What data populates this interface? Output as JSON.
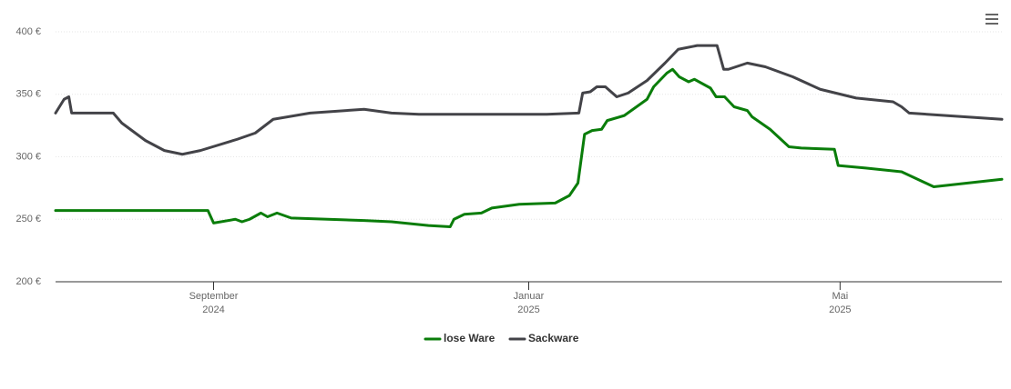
{
  "chart_data": {
    "type": "line",
    "xlim": [
      2024.5,
      2025.5
    ],
    "xticks": [
      {
        "value": 2024.667,
        "label": [
          "September",
          "2024"
        ]
      },
      {
        "value": 2025.0,
        "label": [
          "Januar",
          "2025"
        ]
      },
      {
        "value": 2025.329,
        "label": [
          "Mai",
          "2025"
        ]
      }
    ],
    "ylim": [
      200,
      400
    ],
    "yticks": [
      {
        "value": 200,
        "label": "200 €"
      },
      {
        "value": 250,
        "label": "250 €"
      },
      {
        "value": 300,
        "label": "300 €"
      },
      {
        "value": 350,
        "label": "350 €"
      },
      {
        "value": 400,
        "label": "400 €"
      }
    ],
    "grid": true,
    "legend": "bottom",
    "series": [
      {
        "name": "lose Ware",
        "color": "#0a7d0a",
        "x": [
          2024.5,
          2024.661,
          2024.667,
          2024.69,
          2024.697,
          2024.705,
          2024.717,
          2024.724,
          2024.734,
          2024.749,
          2024.826,
          2024.855,
          2024.894,
          2024.917,
          2024.921,
          2024.932,
          2024.95,
          2024.961,
          2024.99,
          2025.028,
          2025.043,
          2025.052,
          2025.059,
          2025.067,
          2025.077,
          2025.083,
          2025.101,
          2025.125,
          2025.132,
          2025.146,
          2025.152,
          2025.159,
          2025.169,
          2025.175,
          2025.192,
          2025.198,
          2025.207,
          2025.217,
          2025.231,
          2025.236,
          2025.255,
          2025.275,
          2025.288,
          2025.323,
          2025.327,
          2025.356,
          2025.394,
          2025.428,
          2025.5
        ],
        "values": [
          257,
          257,
          247,
          250,
          248,
          250,
          255,
          252,
          255,
          251,
          249,
          248,
          245,
          244,
          250,
          254,
          255,
          259,
          262,
          263,
          269,
          279,
          318,
          321,
          322,
          329,
          333,
          346,
          356,
          367,
          370,
          364,
          360,
          362,
          355,
          348,
          348,
          340,
          337,
          332,
          322,
          308,
          307,
          306,
          293,
          291,
          288,
          276,
          282
        ]
      },
      {
        "name": "Sackware",
        "color": "#434348",
        "x": [
          2024.5,
          2024.509,
          2024.514,
          2024.517,
          2024.561,
          2024.57,
          2024.595,
          2024.615,
          2024.634,
          2024.653,
          2024.692,
          2024.711,
          2024.73,
          2024.769,
          2024.826,
          2024.855,
          2024.884,
          2025.019,
          2025.053,
          2025.057,
          2025.065,
          2025.072,
          2025.081,
          2025.093,
          2025.105,
          2025.125,
          2025.144,
          2025.158,
          2025.178,
          2025.199,
          2025.206,
          2025.211,
          2025.231,
          2025.25,
          2025.279,
          2025.308,
          2025.346,
          2025.385,
          2025.394,
          2025.402,
          2025.5
        ],
        "values": [
          335,
          346,
          348,
          335,
          335,
          327,
          313,
          305,
          302,
          305,
          314,
          319,
          330,
          335,
          338,
          335,
          334,
          334,
          335,
          351,
          352,
          356,
          356,
          348,
          351,
          361,
          375,
          386,
          389,
          389,
          370,
          370,
          375,
          372,
          364,
          354,
          347,
          344,
          340,
          335,
          330
        ]
      }
    ]
  }
}
